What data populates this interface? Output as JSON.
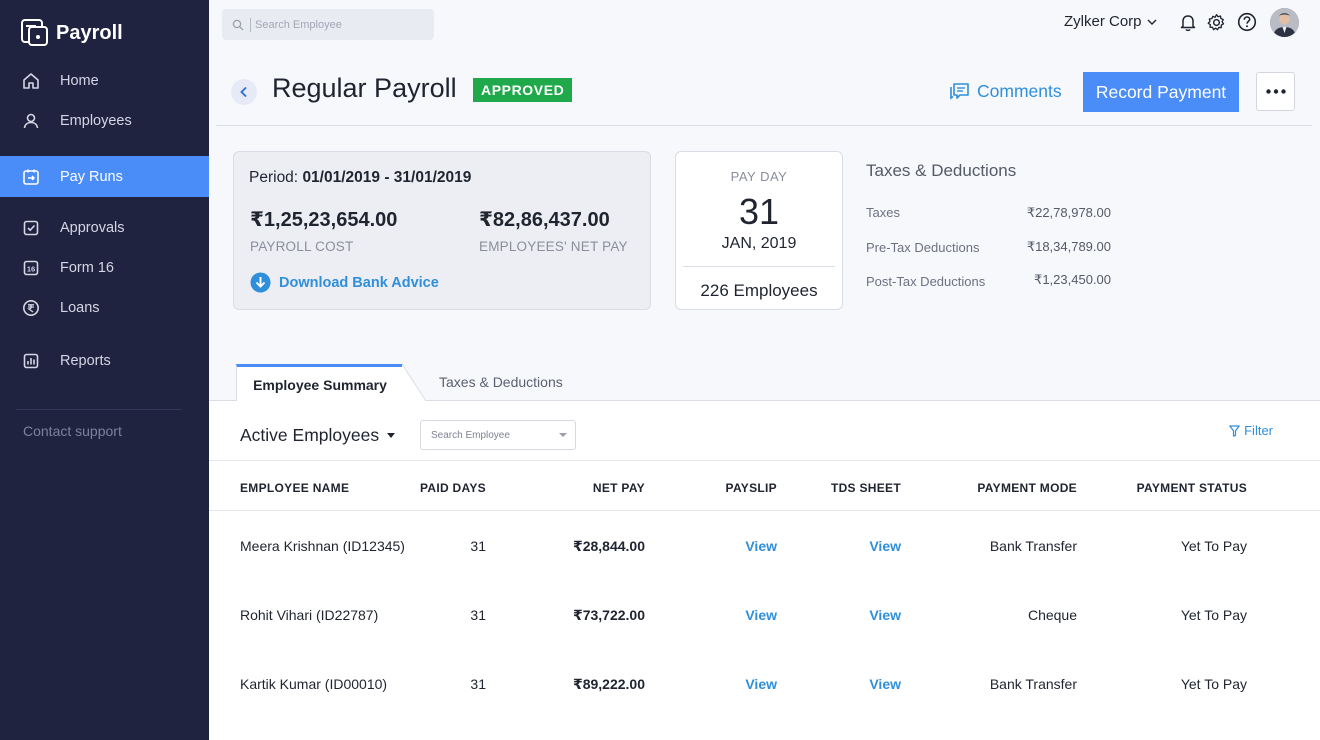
{
  "brand": {
    "name": "Payroll"
  },
  "sidebar": {
    "items": [
      {
        "label": "Home",
        "icon": "home-icon"
      },
      {
        "label": "Employees",
        "icon": "user-icon"
      },
      {
        "label": "Pay Runs",
        "icon": "payrun-icon",
        "active": true
      },
      {
        "label": "Approvals",
        "icon": "checkbox-icon"
      },
      {
        "label": "Form 16",
        "icon": "form16-icon",
        "icon_text": "16"
      },
      {
        "label": "Loans",
        "icon": "rupee-icon"
      },
      {
        "label": "Reports",
        "icon": "reports-icon"
      }
    ],
    "contact_support": "Contact support"
  },
  "topbar": {
    "search_placeholder": "Search Employee",
    "org_name": "Zylker Corp"
  },
  "header": {
    "title": "Regular Payroll",
    "status_badge": "APPROVED",
    "comments_label": "Comments",
    "record_payment_label": "Record Payment"
  },
  "summary": {
    "period_label": "Period:",
    "period_value": "01/01/2019 - 31/01/2019",
    "payroll_cost": "₹1,25,23,654.00",
    "payroll_cost_label": "PAYROLL COST",
    "net_pay": "₹82,86,437.00",
    "net_pay_label": "EMPLOYEES' NET PAY",
    "download_label": "Download Bank Advice"
  },
  "payday": {
    "label": "PAY DAY",
    "day": "31",
    "month_year": "JAN, 2019",
    "employees": "226 Employees"
  },
  "taxes": {
    "title": "Taxes & Deductions",
    "rows": [
      {
        "label": "Taxes",
        "value": "₹22,78,978.00"
      },
      {
        "label": "Pre-Tax Deductions",
        "value": "₹18,34,789.00"
      },
      {
        "label": "Post-Tax Deductions",
        "value": "₹1,23,450.00"
      }
    ]
  },
  "tabs": [
    {
      "label": "Employee Summary",
      "active": true
    },
    {
      "label": "Taxes & Deductions",
      "active": false
    }
  ],
  "filters": {
    "active_employees": "Active Employees",
    "search_placeholder": "Search Employee",
    "filter_label": "Filter"
  },
  "table": {
    "headers": [
      "EMPLOYEE NAME",
      "PAID DAYS",
      "NET PAY",
      "PAYSLIP",
      "TDS SHEET",
      "PAYMENT MODE",
      "PAYMENT STATUS"
    ],
    "rows": [
      {
        "name": "Meera Krishnan (ID12345)",
        "paid_days": "31",
        "net_pay": "₹28,844.00",
        "payslip": "View",
        "tds": "View",
        "mode": "Bank Transfer",
        "status": "Yet To Pay"
      },
      {
        "name": "Rohit Vihari (ID22787)",
        "paid_days": "31",
        "net_pay": "₹73,722.00",
        "payslip": "View",
        "tds": "View",
        "mode": "Cheque",
        "status": "Yet To Pay"
      },
      {
        "name": "Kartik Kumar (ID00010)",
        "paid_days": "31",
        "net_pay": "₹89,222.00",
        "payslip": "View",
        "tds": "View",
        "mode": "Bank Transfer",
        "status": "Yet To Pay"
      }
    ]
  },
  "colors": {
    "sidebar_bg": "#1f2340",
    "accent": "#4a8df8",
    "link": "#2f8fdb",
    "approved": "#1fa94b"
  }
}
